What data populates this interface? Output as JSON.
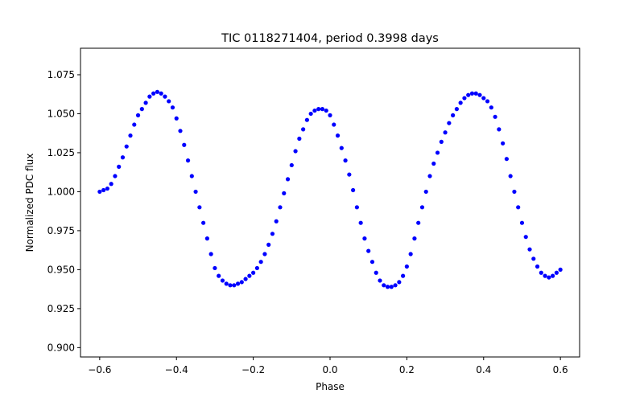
{
  "chart_data": {
    "type": "scatter",
    "title": "TIC 0118271404, period 0.3998 days",
    "xlabel": "Phase",
    "ylabel": "Normalized PDC flux",
    "xlim": [
      -0.65,
      0.65
    ],
    "ylim": [
      0.894,
      1.092
    ],
    "grid": false,
    "marker_color": "#0000ff",
    "x_ticks": [
      {
        "value": -0.6,
        "label": "−0.6"
      },
      {
        "value": -0.4,
        "label": "−0.4"
      },
      {
        "value": -0.2,
        "label": "−0.2"
      },
      {
        "value": 0.0,
        "label": "0.0"
      },
      {
        "value": 0.2,
        "label": "0.2"
      },
      {
        "value": 0.4,
        "label": "0.4"
      },
      {
        "value": 0.6,
        "label": "0.6"
      }
    ],
    "y_ticks": [
      {
        "value": 0.9,
        "label": "0.900"
      },
      {
        "value": 0.925,
        "label": "0.925"
      },
      {
        "value": 0.95,
        "label": "0.950"
      },
      {
        "value": 0.975,
        "label": "0.975"
      },
      {
        "value": 1.0,
        "label": "1.000"
      },
      {
        "value": 1.025,
        "label": "1.025"
      },
      {
        "value": 1.05,
        "label": "1.050"
      },
      {
        "value": 1.075,
        "label": "1.075"
      }
    ],
    "series": [
      {
        "x": [
          -0.6,
          -0.59,
          -0.58,
          -0.57,
          -0.56,
          -0.55,
          -0.54,
          -0.53,
          -0.52,
          -0.51,
          -0.5,
          -0.49,
          -0.48,
          -0.47,
          -0.46,
          -0.45,
          -0.44,
          -0.43,
          -0.42,
          -0.41,
          -0.4,
          -0.39,
          -0.38,
          -0.37,
          -0.36,
          -0.35,
          -0.34,
          -0.33,
          -0.32,
          -0.31,
          -0.3,
          -0.29,
          -0.28,
          -0.27,
          -0.26,
          -0.25,
          -0.24,
          -0.23,
          -0.22,
          -0.21,
          -0.2,
          -0.19,
          -0.18,
          -0.17,
          -0.16,
          -0.15,
          -0.14,
          -0.13,
          -0.12,
          -0.11,
          -0.1,
          -0.09,
          -0.08,
          -0.07,
          -0.06,
          -0.05,
          -0.04,
          -0.03,
          -0.02,
          -0.01,
          0.0,
          0.01,
          0.02,
          0.03,
          0.04,
          0.05,
          0.06,
          0.07,
          0.08,
          0.09,
          0.1,
          0.11,
          0.12,
          0.13,
          0.14,
          0.15,
          0.16,
          0.17,
          0.18,
          0.19,
          0.2,
          0.21,
          0.22,
          0.23,
          0.24,
          0.25,
          0.26,
          0.27,
          0.28,
          0.29,
          0.3,
          0.31,
          0.32,
          0.33,
          0.34,
          0.35,
          0.36,
          0.37,
          0.38,
          0.39,
          0.4,
          0.41,
          0.42,
          0.43,
          0.44,
          0.45,
          0.46,
          0.47,
          0.48,
          0.49,
          0.5,
          0.51,
          0.52,
          0.53,
          0.54,
          0.55,
          0.56,
          0.57,
          0.58,
          0.59,
          0.6
        ],
        "y": [
          1.0,
          1.001,
          1.002,
          1.005,
          1.01,
          1.016,
          1.022,
          1.029,
          1.036,
          1.043,
          1.049,
          1.053,
          1.057,
          1.061,
          1.063,
          1.064,
          1.063,
          1.061,
          1.058,
          1.054,
          1.047,
          1.039,
          1.03,
          1.02,
          1.01,
          1.0,
          0.99,
          0.98,
          0.97,
          0.96,
          0.951,
          0.946,
          0.943,
          0.941,
          0.94,
          0.94,
          0.941,
          0.942,
          0.944,
          0.946,
          0.948,
          0.951,
          0.955,
          0.96,
          0.966,
          0.973,
          0.981,
          0.99,
          0.999,
          1.008,
          1.017,
          1.026,
          1.034,
          1.04,
          1.046,
          1.05,
          1.052,
          1.053,
          1.053,
          1.052,
          1.049,
          1.043,
          1.036,
          1.028,
          1.02,
          1.011,
          1.001,
          0.99,
          0.98,
          0.97,
          0.962,
          0.955,
          0.948,
          0.943,
          0.94,
          0.939,
          0.939,
          0.94,
          0.942,
          0.946,
          0.952,
          0.96,
          0.97,
          0.98,
          0.99,
          1.0,
          1.01,
          1.018,
          1.025,
          1.032,
          1.038,
          1.044,
          1.049,
          1.053,
          1.057,
          1.06,
          1.062,
          1.063,
          1.063,
          1.062,
          1.06,
          1.058,
          1.054,
          1.048,
          1.04,
          1.031,
          1.021,
          1.01,
          1.0,
          0.99,
          0.98,
          0.971,
          0.963,
          0.957,
          0.952,
          0.948,
          0.946,
          0.945,
          0.946,
          0.948,
          0.95
        ]
      }
    ]
  }
}
